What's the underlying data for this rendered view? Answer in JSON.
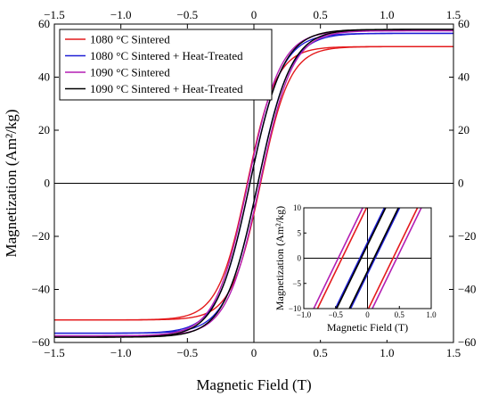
{
  "chart_data": [
    {
      "type": "line",
      "xlabel": "Magnetic Field (T)",
      "ylabel": "Magnetization (Am²/kg)",
      "xlim": [
        -1.5,
        1.5
      ],
      "ylim": [
        -60,
        60
      ],
      "xticks": [
        -1.5,
        -1.0,
        -0.5,
        0,
        0.5,
        1.0,
        1.5
      ],
      "yticks": [
        -60,
        -40,
        -20,
        0,
        20,
        40,
        60
      ],
      "xtick_labels": [
        "−1.5",
        "−1.0",
        "−0.5",
        "0",
        "0.5",
        "1.0",
        "1.5"
      ],
      "ytick_labels": [
        "−60",
        "−40",
        "−20",
        "0",
        "20",
        "40",
        "60"
      ],
      "mirror_ticks": true,
      "zero_lines": true,
      "legend": "top-left",
      "series": [
        {
          "name": "1080 °C Sintered",
          "color": "#e41a1c",
          "ms": 51.5,
          "hc": 0.05,
          "chi0": 0.22
        },
        {
          "name": "1080 °C Sintered + Heat-Treated",
          "color": "#1f1fd6",
          "ms": 56.5,
          "hc": 0.03,
          "chi0": 0.24
        },
        {
          "name": "1090 °C Sintered",
          "color": "#b31eb3",
          "ms": 57.5,
          "hc": 0.045,
          "chi0": 0.245
        },
        {
          "name": "1090 °C Sintered + Heat-Treated",
          "color": "#000000",
          "ms": 58.0,
          "hc": 0.03,
          "chi0": 0.25
        }
      ]
    },
    {
      "type": "line",
      "xlabel": "Magnetic Field (T)",
      "ylabel": "Magnetization (Am²/kg)",
      "xlim": [
        -1.0,
        1.0
      ],
      "ylim": [
        -10,
        10
      ],
      "xticks": [
        -1.0,
        -0.5,
        0,
        0.5,
        1.0
      ],
      "yticks": [
        -10,
        -5,
        0,
        5,
        10
      ],
      "xtick_labels": [
        "−1.0",
        "−0.5",
        "0",
        "0.5",
        "1.0"
      ],
      "ytick_labels": [
        "−10",
        "−5",
        "0",
        "5",
        "10"
      ],
      "zero_lines": true,
      "inset_loops": [
        {
          "color": "#e41a1c",
          "hc": 0.4,
          "slope": 26
        },
        {
          "color": "#b31eb3",
          "hc": 0.46,
          "slope": 26
        },
        {
          "color": "#1f1fd6",
          "hc": 0.12,
          "slope": 26
        },
        {
          "color": "#000000",
          "hc": 0.1,
          "slope": 26
        }
      ]
    }
  ]
}
